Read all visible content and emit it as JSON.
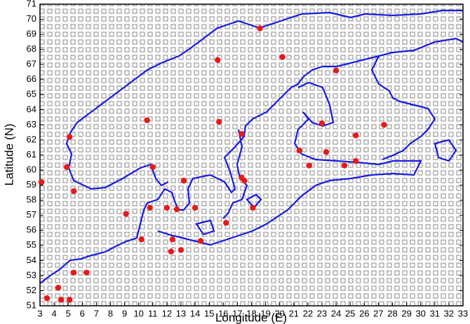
{
  "chart_data": {
    "type": "scatter",
    "x_label": "Longitude (E)",
    "y_label": "Latitude (N)",
    "color": "#e81a1a",
    "x": [
      18.6,
      20.2,
      15.6,
      24.0,
      10.6,
      15.7,
      17.3,
      5.1,
      23.0,
      27.4,
      25.4,
      21.4,
      23.3,
      4.9,
      25.4,
      11.0,
      22.1,
      24.6,
      3.1,
      5.4,
      13.2,
      17.3,
      17.5,
      10.8,
      9.1,
      12.0,
      14.0,
      18.1,
      12.7,
      16.2,
      10.2,
      12.4,
      13.0,
      14.4,
      12.3,
      5.4,
      6.3,
      4.3,
      3.5,
      4.5,
      5.1
    ],
    "y": [
      69.4,
      67.5,
      67.3,
      66.6,
      63.3,
      63.2,
      62.4,
      62.2,
      63.1,
      63.0,
      62.3,
      61.3,
      61.2,
      60.2,
      60.6,
      60.2,
      60.3,
      60.3,
      59.2,
      58.6,
      59.3,
      59.5,
      59.3,
      57.5,
      57.1,
      57.5,
      57.5,
      57.5,
      57.4,
      56.5,
      55.4,
      55.4,
      54.7,
      55.3,
      54.6,
      53.2,
      53.2,
      52.2,
      51.5,
      51.4,
      51.4
    ],
    "xlim": [
      3,
      33
    ],
    "ylim": [
      51,
      71
    ],
    "xticks": [
      3,
      4,
      5,
      6,
      7,
      8,
      9,
      10,
      11,
      12,
      13,
      14,
      15,
      16,
      17,
      18,
      19,
      20,
      21,
      22,
      23,
      24,
      25,
      26,
      27,
      28,
      29,
      30,
      31,
      32,
      33
    ],
    "yticks": [
      51,
      52,
      53,
      54,
      55,
      56,
      57,
      58,
      59,
      60,
      61,
      62,
      63,
      64,
      65,
      66,
      67,
      68,
      69,
      70,
      71
    ]
  }
}
